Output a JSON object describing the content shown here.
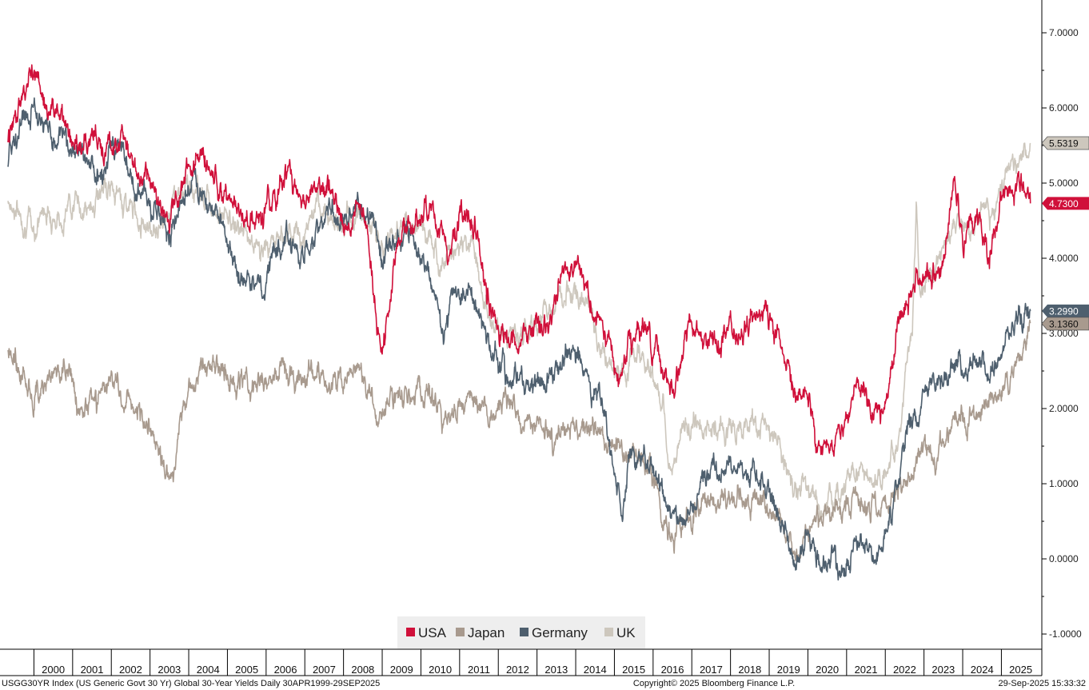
{
  "footer": {
    "left": "USGG30YR Index (US Generic Govt 30 Yr) Global 30-Year Yields  Daily 30APR1999-29SEP2025",
    "center": "Copyright© 2025 Bloomberg Finance L.P.",
    "right": "29-Sep-2025 15:33:32"
  },
  "chart_data": {
    "type": "line",
    "title": "Global 30-Year Yields",
    "xlabel": "",
    "ylabel": "",
    "x_range": [
      1999.33,
      2025.75
    ],
    "ylim": [
      -1.15,
      7.4
    ],
    "y_ticks": [
      "7.0000",
      "6.0000",
      "5.0000",
      "4.0000",
      "3.0000",
      "2.0000",
      "1.0000",
      "0.0000",
      "-1.0000"
    ],
    "y_tick_values": [
      7,
      6,
      5,
      4,
      3,
      2,
      1,
      0,
      -1
    ],
    "years": [
      "2000",
      "2001",
      "2002",
      "2003",
      "2004",
      "2005",
      "2006",
      "2007",
      "2008",
      "2009",
      "2010",
      "2011",
      "2012",
      "2013",
      "2014",
      "2015",
      "2016",
      "2017",
      "2018",
      "2019",
      "2020",
      "2021",
      "2022",
      "2023",
      "2024",
      "2025"
    ],
    "legend": [
      "USA",
      "Japan",
      "Germany",
      "UK"
    ],
    "series": [
      {
        "name": "USA",
        "color": "#d0103a",
        "last": "4.7300",
        "last_value": 4.73,
        "x": [
          1999.33,
          1999.6,
          2000.0,
          2000.3,
          2000.7,
          2001.0,
          2001.5,
          2001.9,
          2002.3,
          2002.6,
          2003.0,
          2003.5,
          2003.9,
          2004.3,
          2004.7,
          2005.0,
          2005.3,
          2005.7,
          2006.1,
          2006.5,
          2006.9,
          2007.3,
          2007.6,
          2008.0,
          2008.3,
          2008.6,
          2008.9,
          2009.0,
          2009.4,
          2009.9,
          2010.3,
          2010.7,
          2011.0,
          2011.4,
          2011.7,
          2012.0,
          2012.4,
          2012.7,
          2013.0,
          2013.3,
          2013.6,
          2014.0,
          2014.4,
          2014.8,
          2015.1,
          2015.5,
          2015.9,
          2016.2,
          2016.5,
          2016.9,
          2017.3,
          2017.7,
          2018.0,
          2018.5,
          2018.9,
          2019.3,
          2019.7,
          2020.0,
          2020.2,
          2020.6,
          2021.0,
          2021.3,
          2021.7,
          2022.0,
          2022.4,
          2022.8,
          2023.0,
          2023.4,
          2023.8,
          2024.0,
          2024.3,
          2024.7,
          2025.0,
          2025.4,
          2025.75
        ],
        "y": [
          5.6,
          6.0,
          6.5,
          6.0,
          5.9,
          5.5,
          5.6,
          5.3,
          5.7,
          5.2,
          5.0,
          4.5,
          5.1,
          5.3,
          5.0,
          4.8,
          4.5,
          4.4,
          4.7,
          5.2,
          4.7,
          4.9,
          5.0,
          4.4,
          4.5,
          4.5,
          3.0,
          2.7,
          4.2,
          4.5,
          4.7,
          4.0,
          4.6,
          4.4,
          3.5,
          3.0,
          2.8,
          2.9,
          3.1,
          3.2,
          3.7,
          3.9,
          3.4,
          3.0,
          2.4,
          3.1,
          3.0,
          2.7,
          2.2,
          3.0,
          3.0,
          2.8,
          3.1,
          3.1,
          3.3,
          2.9,
          2.1,
          2.2,
          1.4,
          1.5,
          1.9,
          2.4,
          1.9,
          2.1,
          3.2,
          3.8,
          3.7,
          3.8,
          5.0,
          4.1,
          4.6,
          4.0,
          4.8,
          5.0,
          4.73
        ]
      },
      {
        "name": "Japan",
        "color": "#a89a8e",
        "last": "3.1360",
        "last_value": 3.136,
        "x": [
          1999.33,
          1999.6,
          2000.0,
          2000.3,
          2000.6,
          2000.9,
          2001.2,
          2001.5,
          2001.8,
          2002.1,
          2002.5,
          2002.9,
          2003.2,
          2003.4,
          2003.6,
          2003.9,
          2004.2,
          2004.5,
          2004.8,
          2005.2,
          2005.6,
          2006.0,
          2006.4,
          2006.8,
          2007.2,
          2007.6,
          2008.0,
          2008.4,
          2008.7,
          2008.9,
          2009.3,
          2009.7,
          2010.0,
          2010.3,
          2010.6,
          2010.9,
          2011.3,
          2011.7,
          2012.0,
          2012.4,
          2012.7,
          2013.0,
          2013.3,
          2013.4,
          2013.7,
          2014.0,
          2014.4,
          2014.8,
          2015.1,
          2015.3,
          2015.6,
          2015.9,
          2016.2,
          2016.5,
          2016.9,
          2017.3,
          2017.7,
          2018.0,
          2018.5,
          2018.9,
          2019.3,
          2019.7,
          2020.0,
          2020.4,
          2020.8,
          2021.2,
          2021.6,
          2022.0,
          2022.3,
          2022.6,
          2022.9,
          2023.2,
          2023.6,
          2023.9,
          2024.3,
          2024.7,
          2025.0,
          2025.3,
          2025.6,
          2025.75
        ],
        "y": [
          2.9,
          2.5,
          2.2,
          2.3,
          2.5,
          2.6,
          2.0,
          2.1,
          2.3,
          2.4,
          2.1,
          1.7,
          1.6,
          1.0,
          1.3,
          2.1,
          2.3,
          2.6,
          2.5,
          2.4,
          2.3,
          2.4,
          2.5,
          2.4,
          2.45,
          2.4,
          2.4,
          2.5,
          2.2,
          1.8,
          2.1,
          2.2,
          2.3,
          2.2,
          1.8,
          2.1,
          2.2,
          2.0,
          1.95,
          1.95,
          1.8,
          1.9,
          1.7,
          1.5,
          1.8,
          1.75,
          1.7,
          1.5,
          1.45,
          1.4,
          1.4,
          1.3,
          0.7,
          0.2,
          0.5,
          0.85,
          0.8,
          0.82,
          0.78,
          0.68,
          0.5,
          0.1,
          0.35,
          0.55,
          0.6,
          0.7,
          0.7,
          0.75,
          0.85,
          1.1,
          1.5,
          1.4,
          1.6,
          1.7,
          1.9,
          2.1,
          2.2,
          2.4,
          2.9,
          3.136
        ]
      },
      {
        "name": "Germany",
        "color": "#4e5f6e",
        "last": "3.2990",
        "last_value": 3.299,
        "x": [
          1999.33,
          1999.6,
          2000.0,
          2000.3,
          2000.7,
          2001.0,
          2001.4,
          2001.7,
          2002.0,
          2002.3,
          2002.6,
          2002.9,
          2003.2,
          2003.5,
          2003.8,
          2004.1,
          2004.4,
          2004.7,
          2005.0,
          2005.3,
          2005.6,
          2005.9,
          2006.2,
          2006.6,
          2006.9,
          2007.3,
          2007.6,
          2007.9,
          2008.2,
          2008.5,
          2008.7,
          2009.0,
          2009.3,
          2009.7,
          2010.0,
          2010.3,
          2010.6,
          2010.9,
          2011.3,
          2011.7,
          2012.0,
          2012.3,
          2012.7,
          2013.0,
          2013.4,
          2013.8,
          2014.1,
          2014.4,
          2014.7,
          2015.0,
          2015.2,
          2015.4,
          2015.6,
          2015.9,
          2016.2,
          2016.5,
          2016.9,
          2017.3,
          2017.7,
          2018.0,
          2018.4,
          2018.8,
          2019.1,
          2019.4,
          2019.7,
          2019.9,
          2020.0,
          2020.2,
          2020.5,
          2020.9,
          2021.2,
          2021.5,
          2021.8,
          2022.0,
          2022.3,
          2022.6,
          2022.9,
          2023.2,
          2023.6,
          2023.9,
          2024.2,
          2024.5,
          2024.8,
          2025.1,
          2025.4,
          2025.75
        ],
        "y": [
          5.3,
          5.7,
          6.0,
          5.7,
          5.6,
          5.5,
          5.3,
          5.1,
          5.4,
          5.5,
          5.0,
          4.8,
          4.6,
          4.4,
          4.8,
          5.0,
          4.8,
          4.6,
          4.3,
          3.8,
          3.7,
          3.6,
          4.0,
          4.3,
          3.9,
          4.3,
          4.7,
          4.5,
          4.6,
          4.7,
          4.6,
          3.9,
          4.2,
          4.4,
          4.0,
          3.6,
          3.0,
          3.5,
          3.6,
          3.0,
          2.6,
          2.5,
          2.3,
          2.3,
          2.5,
          2.8,
          2.6,
          2.3,
          2.0,
          1.2,
          0.6,
          1.5,
          1.3,
          1.3,
          1.0,
          0.45,
          0.6,
          1.1,
          1.2,
          1.3,
          1.2,
          1.0,
          0.7,
          0.3,
          -0.2,
          0.1,
          0.2,
          -0.05,
          -0.15,
          -0.1,
          0.2,
          0.2,
          0.0,
          0.2,
          1.0,
          1.7,
          2.0,
          2.4,
          2.4,
          2.6,
          2.5,
          2.6,
          2.5,
          2.9,
          3.2,
          3.299
        ]
      },
      {
        "name": "UK",
        "color": "#cdc7bd",
        "last": "5.5319",
        "last_value": 5.5319,
        "x": [
          1999.33,
          1999.6,
          2000.0,
          2000.3,
          2000.7,
          2001.0,
          2001.4,
          2001.7,
          2002.0,
          2002.3,
          2002.6,
          2002.9,
          2003.2,
          2003.5,
          2003.8,
          2004.1,
          2004.4,
          2004.7,
          2005.0,
          2005.3,
          2005.6,
          2005.9,
          2006.2,
          2006.6,
          2006.9,
          2007.3,
          2007.6,
          2007.9,
          2008.2,
          2008.5,
          2008.8,
          2009.0,
          2009.3,
          2009.6,
          2010.0,
          2010.3,
          2010.6,
          2010.9,
          2011.3,
          2011.7,
          2012.0,
          2012.3,
          2012.7,
          2013.0,
          2013.4,
          2013.8,
          2014.1,
          2014.4,
          2014.7,
          2015.0,
          2015.3,
          2015.6,
          2015.9,
          2016.2,
          2016.4,
          2016.6,
          2016.9,
          2017.3,
          2017.7,
          2018.0,
          2018.4,
          2018.8,
          2019.1,
          2019.4,
          2019.7,
          2019.9,
          2020.1,
          2020.3,
          2020.6,
          2020.9,
          2021.2,
          2021.5,
          2021.8,
          2022.1,
          2022.4,
          2022.7,
          2022.8,
          2022.9,
          2023.2,
          2023.6,
          2023.9,
          2024.2,
          2024.5,
          2024.8,
          2025.1,
          2025.4,
          2025.75
        ],
        "y": [
          4.8,
          4.6,
          4.4,
          4.7,
          4.5,
          4.8,
          4.6,
          4.9,
          4.9,
          4.8,
          4.6,
          4.5,
          4.4,
          4.7,
          4.9,
          4.9,
          4.9,
          4.7,
          4.5,
          4.4,
          4.2,
          4.1,
          4.2,
          4.4,
          4.3,
          4.6,
          4.6,
          4.5,
          4.5,
          4.6,
          4.4,
          4.0,
          4.4,
          4.4,
          4.4,
          4.2,
          4.0,
          4.1,
          4.3,
          3.3,
          3.1,
          3.0,
          3.0,
          3.1,
          3.4,
          3.6,
          3.5,
          3.3,
          2.8,
          2.5,
          2.5,
          2.7,
          2.6,
          2.1,
          1.4,
          1.3,
          1.9,
          1.7,
          1.8,
          1.7,
          1.8,
          1.7,
          1.6,
          1.3,
          0.9,
          1.0,
          0.8,
          0.6,
          0.8,
          0.9,
          1.2,
          1.2,
          1.0,
          1.2,
          1.8,
          3.1,
          4.6,
          3.5,
          3.8,
          4.2,
          4.5,
          4.3,
          4.7,
          4.6,
          5.1,
          5.4,
          5.5319
        ]
      }
    ]
  }
}
